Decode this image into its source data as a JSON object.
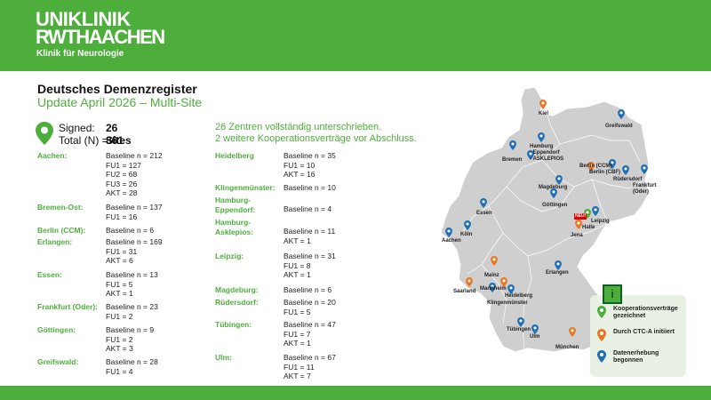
{
  "brand": {
    "line1": "UNIKLINIK",
    "line2": "RWTHAACHEN",
    "sub": "Klinik für Neurologie"
  },
  "heading": {
    "title": "Deutsches Demenzregister",
    "subtitle": "Update April 2026 – Multi-Site"
  },
  "stats": {
    "signed_label": "Signed:",
    "signed_value": "26 Sites",
    "total_label": "Total (N) =",
    "total_value": "861"
  },
  "note": {
    "line1": "26 Zentren vollständig unterschrieben.",
    "line2": "2 weitere Kooperationsverträge vor Abschluss."
  },
  "sites_left": [
    {
      "city": "Aachen:",
      "values": [
        "Baseline n = 212",
        "FU1 = 127",
        "FU2 = 68",
        "FU3 = 26",
        "AKT = 28"
      ]
    },
    {
      "city": "Bremen-Ost:",
      "values": [
        "Baseline n = 137",
        "FU1 = 16"
      ]
    },
    {
      "city": "Berlin (CCM):",
      "values": [
        "Baseline n = 6"
      ]
    },
    {
      "city": "Erlangen:",
      "values": [
        "Baseline n = 169",
        "FU1 = 31",
        "AKT = 6"
      ]
    },
    {
      "city": "Essen:",
      "values": [
        "Baseline n = 13",
        "FU1 = 5",
        "AKT = 1"
      ]
    },
    {
      "city": "Frankfurt (Oder):",
      "values": [
        "Baseline n = 23",
        "FU1 = 2"
      ]
    },
    {
      "city": "Göttingen:",
      "values": [
        "Baseline n = 9",
        "FU1 = 2",
        "AKT = 3"
      ]
    },
    {
      "city": "Greifswald:",
      "values": [
        "Baseline n = 28",
        "FU1 = 4"
      ]
    }
  ],
  "sites_right": [
    {
      "city": "Heidelberg",
      "values": [
        "Baseline n = 35",
        "FU1 = 10",
        "AKT = 16"
      ]
    },
    {
      "city": "Klingenmünster:",
      "values": [
        "Baseline n = 10"
      ]
    },
    {
      "city": "Hamburg-",
      "city2": "Eppendorf:",
      "values": [
        "Baseline n = 4"
      ]
    },
    {
      "city": "Hamburg-",
      "city2": "Asklepios:",
      "values": [
        "Baseline n = 11",
        "AKT = 1"
      ]
    },
    {
      "city": "Leipzig:",
      "values": [
        "Baseline n = 31",
        "FU1 = 8",
        "AKT = 1"
      ]
    },
    {
      "city": "Magdeburg:",
      "values": [
        "Baseline n = 6"
      ]
    },
    {
      "city": "Rüdersdorf:",
      "values": [
        "Baseline n = 20",
        "FU1 = 5"
      ]
    },
    {
      "city": "Tübingen:",
      "values": [
        "Baseline n = 47",
        "FU1 = 7",
        "AKT = 1"
      ]
    },
    {
      "city": "Ulm:",
      "values": [
        "Baseline n = 67",
        "FU1 = 11",
        "AKT = 7"
      ]
    }
  ],
  "map_labels": {
    "kiel": "Kiel",
    "greifswald": "Greifswald",
    "bremen": "Bremen",
    "hamburg": "Hamburg",
    "eppendorf": "- Eppendorf",
    "asklepios": "- ASKLEPIOS",
    "berlin_ccm": "Berlin (CCM)",
    "berlin_cbf": "Berlin (CBF)",
    "ruedersdorf": "Rüdersdorf",
    "frankfurt": "Frankfurt",
    "oder": "(Oder)",
    "magdeburg": "Magdeburg",
    "goettingen": "Göttingen",
    "essen": "Essen",
    "koeln": "Köln",
    "aachen": "Aachen",
    "neu": "NEU!",
    "leipzig": "Leipzig",
    "halle": "Halle",
    "jena": "Jena",
    "erlangen": "Erlangen",
    "mainz": "Mainz",
    "mannheim": "Mannheim",
    "heidelberg": "Heidelberg",
    "saarland": "Saarland",
    "klingenmuenster": "Klingenmünster",
    "tuebingen": "Tübingen",
    "ulm": "Ulm",
    "muenchen": "München"
  },
  "legend": {
    "info_icon": "i",
    "green_label": "Kooperationsverträge gezeichnet",
    "orange_label": "Durch CTC-A initiiert",
    "blue_label": "Datenerhebung begonnen"
  },
  "colors": {
    "brand_green": "#4eae3c",
    "pin_green": "#4eae3c",
    "pin_orange": "#e87722",
    "pin_blue": "#1f6fb5",
    "map_fill": "#cfcfcf"
  }
}
